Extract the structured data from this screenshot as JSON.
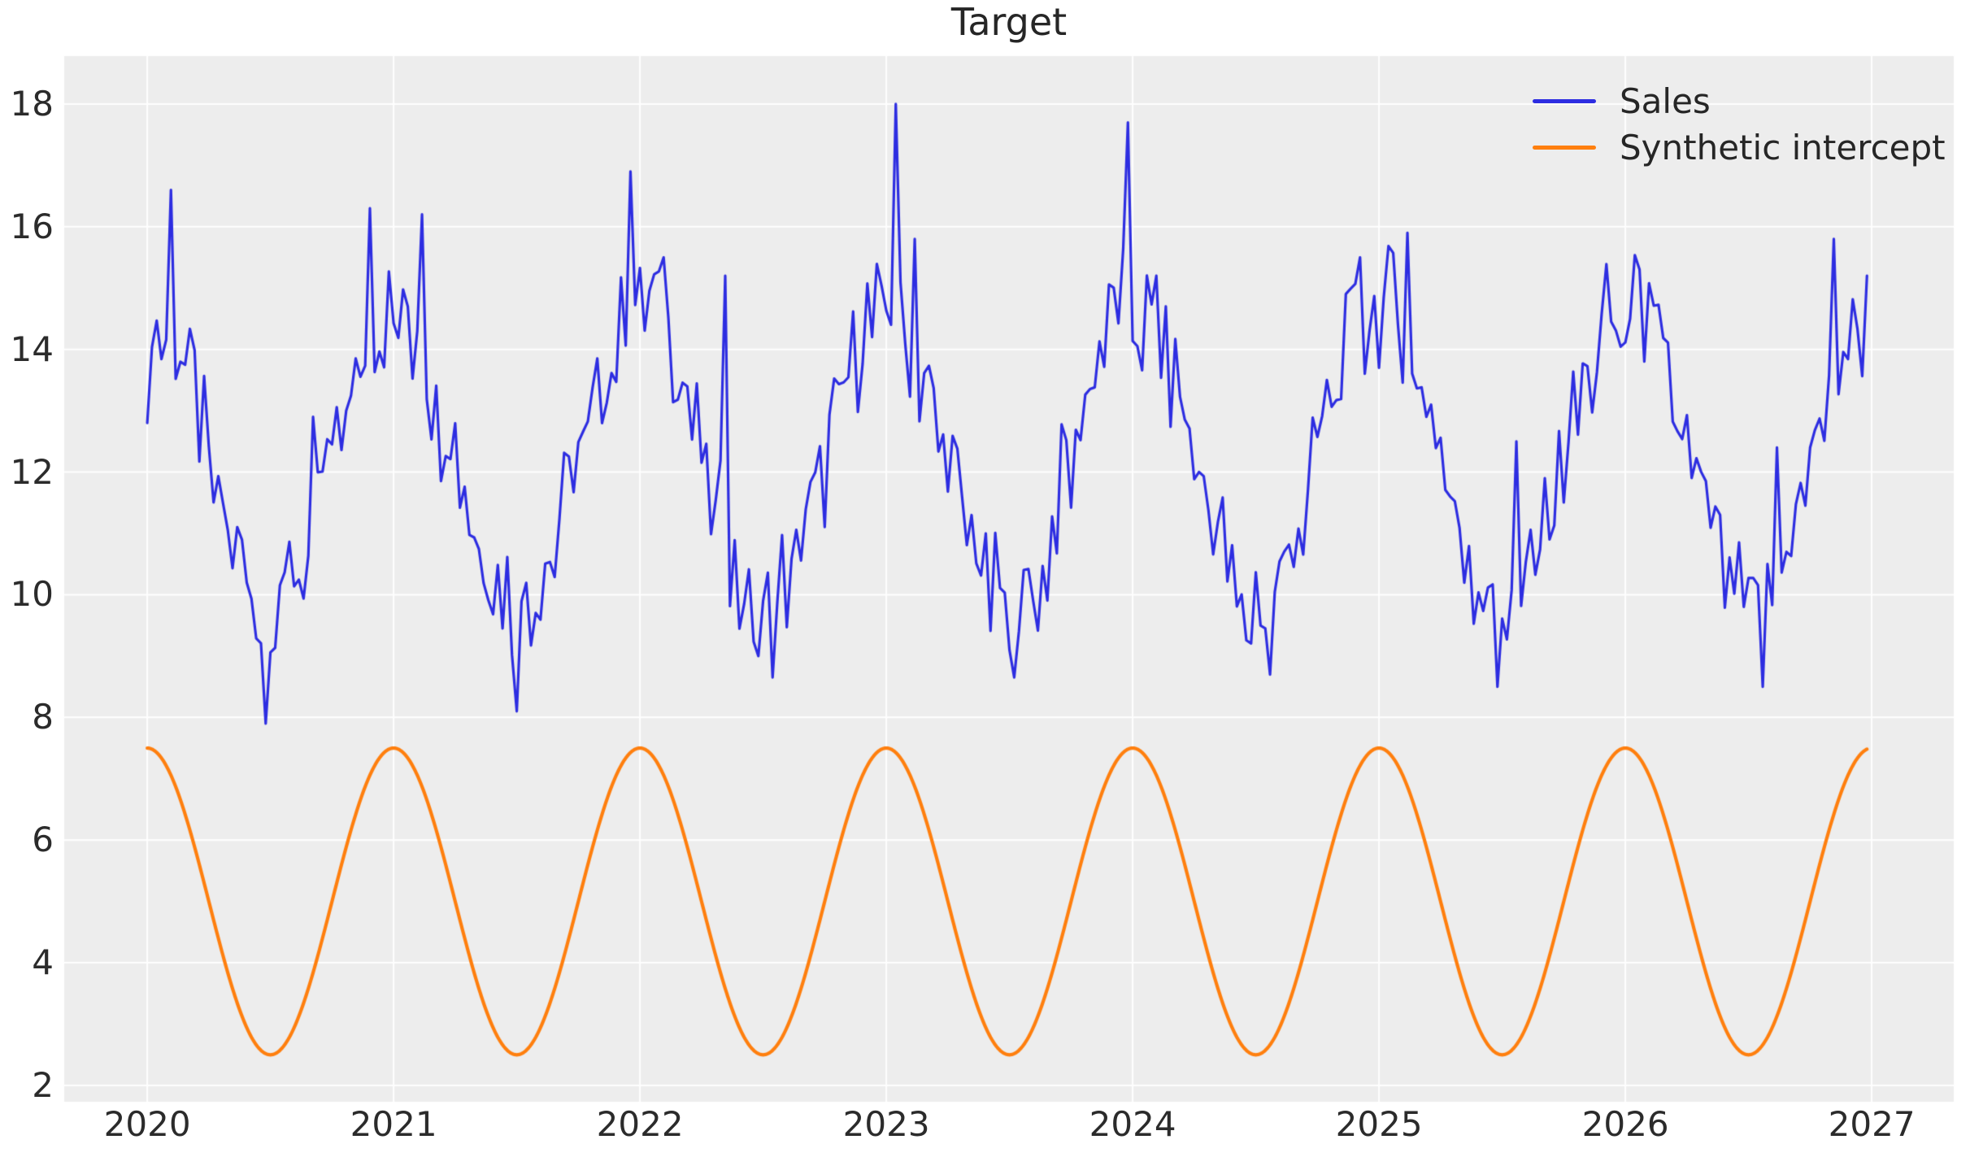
{
  "chart_data": {
    "type": "line",
    "title": "Target",
    "grid": true,
    "legend_position": "upper right",
    "style": {
      "fig_bg": "#ffffff",
      "plot_bg": "#ededed",
      "grid_color": "#ffffff",
      "text_color": "#262626"
    },
    "x_axis": {
      "unit": "year",
      "ticks": [
        2020,
        2021,
        2022,
        2023,
        2024,
        2025,
        2026,
        2027
      ],
      "tick_labels": [
        "2020",
        "2021",
        "2022",
        "2023",
        "2024",
        "2025",
        "2026",
        "2027"
      ],
      "lim": [
        2019.663,
        2027.333
      ]
    },
    "y_axis": {
      "ticks": [
        2,
        4,
        6,
        8,
        10,
        12,
        14,
        16,
        18
      ],
      "tick_labels": [
        "2",
        "4",
        "6",
        "8",
        "10",
        "12",
        "14",
        "16",
        "18"
      ],
      "lim": [
        1.735,
        18.781
      ]
    },
    "series": [
      {
        "name": "Sales",
        "type": "noisy_seasonal_line",
        "color": "#2d2de1",
        "line_width": 3.2,
        "start_year": 2020.0,
        "end_year": 2026.981,
        "samples_per_year": 52,
        "seasonal_mean": 12.2,
        "seasonal_amplitude": 2.4,
        "seasonal_peak_at_year_start": true,
        "noise_amplitude": 1.0,
        "observed_min": 7.9,
        "observed_max": 18.0,
        "key_points": [
          {
            "x": 2020.0,
            "y": 12.8
          },
          {
            "x": 2020.1,
            "y": 16.6
          },
          {
            "x": 2020.48,
            "y": 7.9
          },
          {
            "x": 2020.67,
            "y": 12.9
          },
          {
            "x": 2020.9,
            "y": 16.3
          },
          {
            "x": 2021.12,
            "y": 16.2
          },
          {
            "x": 2021.5,
            "y": 8.1
          },
          {
            "x": 2021.97,
            "y": 16.9
          },
          {
            "x": 2022.1,
            "y": 15.5
          },
          {
            "x": 2022.34,
            "y": 15.2
          },
          {
            "x": 2022.48,
            "y": 9.0
          },
          {
            "x": 2023.03,
            "y": 18.0
          },
          {
            "x": 2023.12,
            "y": 15.8
          },
          {
            "x": 2023.5,
            "y": 9.1
          },
          {
            "x": 2023.98,
            "y": 17.7
          },
          {
            "x": 2024.1,
            "y": 15.2
          },
          {
            "x": 2024.55,
            "y": 8.7
          },
          {
            "x": 2024.93,
            "y": 15.5
          },
          {
            "x": 2025.12,
            "y": 15.9
          },
          {
            "x": 2025.49,
            "y": 8.5
          },
          {
            "x": 2025.56,
            "y": 12.5
          },
          {
            "x": 2026.05,
            "y": 15.3
          },
          {
            "x": 2026.55,
            "y": 8.5
          },
          {
            "x": 2026.62,
            "y": 12.4
          },
          {
            "x": 2026.85,
            "y": 15.8
          },
          {
            "x": 2026.98,
            "y": 15.2
          }
        ]
      },
      {
        "name": "Synthetic intercept",
        "type": "sine_line",
        "color": "#ff7f0e",
        "line_width": 4.2,
        "start_year": 2020.0,
        "end_year": 2026.981,
        "samples_per_year": 208,
        "mean": 5.0,
        "amplitude": 2.5,
        "period_years": 1.0,
        "max": 7.5,
        "min": 2.5,
        "peak_at_year_start": true
      }
    ]
  }
}
